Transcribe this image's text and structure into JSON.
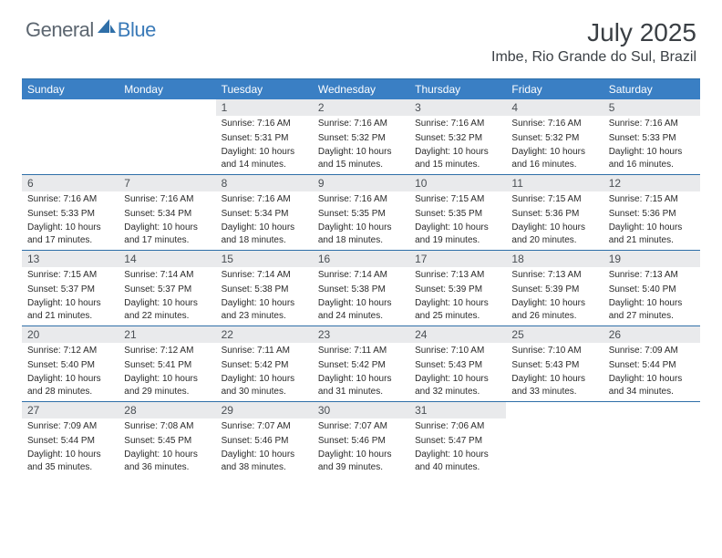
{
  "brand": {
    "general": "General",
    "blue": "Blue"
  },
  "title": "July 2025",
  "location": "Imbe, Rio Grande do Sul, Brazil",
  "colors": {
    "header_bar": "#3a7fc4",
    "header_border": "#2f6fa8",
    "daynum_bg": "#e9eaec",
    "text": "#2a2a2a",
    "title_text": "#3a3f44",
    "logo_gray": "#5c6670",
    "logo_blue": "#3a7ab8",
    "background": "#ffffff"
  },
  "weekdays": [
    "Sunday",
    "Monday",
    "Tuesday",
    "Wednesday",
    "Thursday",
    "Friday",
    "Saturday"
  ],
  "weeks": [
    [
      {
        "n": "",
        "sunrise": "",
        "sunset": "",
        "daylight": ""
      },
      {
        "n": "",
        "sunrise": "",
        "sunset": "",
        "daylight": ""
      },
      {
        "n": "1",
        "sunrise": "Sunrise: 7:16 AM",
        "sunset": "Sunset: 5:31 PM",
        "daylight": "Daylight: 10 hours and 14 minutes."
      },
      {
        "n": "2",
        "sunrise": "Sunrise: 7:16 AM",
        "sunset": "Sunset: 5:32 PM",
        "daylight": "Daylight: 10 hours and 15 minutes."
      },
      {
        "n": "3",
        "sunrise": "Sunrise: 7:16 AM",
        "sunset": "Sunset: 5:32 PM",
        "daylight": "Daylight: 10 hours and 15 minutes."
      },
      {
        "n": "4",
        "sunrise": "Sunrise: 7:16 AM",
        "sunset": "Sunset: 5:32 PM",
        "daylight": "Daylight: 10 hours and 16 minutes."
      },
      {
        "n": "5",
        "sunrise": "Sunrise: 7:16 AM",
        "sunset": "Sunset: 5:33 PM",
        "daylight": "Daylight: 10 hours and 16 minutes."
      }
    ],
    [
      {
        "n": "6",
        "sunrise": "Sunrise: 7:16 AM",
        "sunset": "Sunset: 5:33 PM",
        "daylight": "Daylight: 10 hours and 17 minutes."
      },
      {
        "n": "7",
        "sunrise": "Sunrise: 7:16 AM",
        "sunset": "Sunset: 5:34 PM",
        "daylight": "Daylight: 10 hours and 17 minutes."
      },
      {
        "n": "8",
        "sunrise": "Sunrise: 7:16 AM",
        "sunset": "Sunset: 5:34 PM",
        "daylight": "Daylight: 10 hours and 18 minutes."
      },
      {
        "n": "9",
        "sunrise": "Sunrise: 7:16 AM",
        "sunset": "Sunset: 5:35 PM",
        "daylight": "Daylight: 10 hours and 18 minutes."
      },
      {
        "n": "10",
        "sunrise": "Sunrise: 7:15 AM",
        "sunset": "Sunset: 5:35 PM",
        "daylight": "Daylight: 10 hours and 19 minutes."
      },
      {
        "n": "11",
        "sunrise": "Sunrise: 7:15 AM",
        "sunset": "Sunset: 5:36 PM",
        "daylight": "Daylight: 10 hours and 20 minutes."
      },
      {
        "n": "12",
        "sunrise": "Sunrise: 7:15 AM",
        "sunset": "Sunset: 5:36 PM",
        "daylight": "Daylight: 10 hours and 21 minutes."
      }
    ],
    [
      {
        "n": "13",
        "sunrise": "Sunrise: 7:15 AM",
        "sunset": "Sunset: 5:37 PM",
        "daylight": "Daylight: 10 hours and 21 minutes."
      },
      {
        "n": "14",
        "sunrise": "Sunrise: 7:14 AM",
        "sunset": "Sunset: 5:37 PM",
        "daylight": "Daylight: 10 hours and 22 minutes."
      },
      {
        "n": "15",
        "sunrise": "Sunrise: 7:14 AM",
        "sunset": "Sunset: 5:38 PM",
        "daylight": "Daylight: 10 hours and 23 minutes."
      },
      {
        "n": "16",
        "sunrise": "Sunrise: 7:14 AM",
        "sunset": "Sunset: 5:38 PM",
        "daylight": "Daylight: 10 hours and 24 minutes."
      },
      {
        "n": "17",
        "sunrise": "Sunrise: 7:13 AM",
        "sunset": "Sunset: 5:39 PM",
        "daylight": "Daylight: 10 hours and 25 minutes."
      },
      {
        "n": "18",
        "sunrise": "Sunrise: 7:13 AM",
        "sunset": "Sunset: 5:39 PM",
        "daylight": "Daylight: 10 hours and 26 minutes."
      },
      {
        "n": "19",
        "sunrise": "Sunrise: 7:13 AM",
        "sunset": "Sunset: 5:40 PM",
        "daylight": "Daylight: 10 hours and 27 minutes."
      }
    ],
    [
      {
        "n": "20",
        "sunrise": "Sunrise: 7:12 AM",
        "sunset": "Sunset: 5:40 PM",
        "daylight": "Daylight: 10 hours and 28 minutes."
      },
      {
        "n": "21",
        "sunrise": "Sunrise: 7:12 AM",
        "sunset": "Sunset: 5:41 PM",
        "daylight": "Daylight: 10 hours and 29 minutes."
      },
      {
        "n": "22",
        "sunrise": "Sunrise: 7:11 AM",
        "sunset": "Sunset: 5:42 PM",
        "daylight": "Daylight: 10 hours and 30 minutes."
      },
      {
        "n": "23",
        "sunrise": "Sunrise: 7:11 AM",
        "sunset": "Sunset: 5:42 PM",
        "daylight": "Daylight: 10 hours and 31 minutes."
      },
      {
        "n": "24",
        "sunrise": "Sunrise: 7:10 AM",
        "sunset": "Sunset: 5:43 PM",
        "daylight": "Daylight: 10 hours and 32 minutes."
      },
      {
        "n": "25",
        "sunrise": "Sunrise: 7:10 AM",
        "sunset": "Sunset: 5:43 PM",
        "daylight": "Daylight: 10 hours and 33 minutes."
      },
      {
        "n": "26",
        "sunrise": "Sunrise: 7:09 AM",
        "sunset": "Sunset: 5:44 PM",
        "daylight": "Daylight: 10 hours and 34 minutes."
      }
    ],
    [
      {
        "n": "27",
        "sunrise": "Sunrise: 7:09 AM",
        "sunset": "Sunset: 5:44 PM",
        "daylight": "Daylight: 10 hours and 35 minutes."
      },
      {
        "n": "28",
        "sunrise": "Sunrise: 7:08 AM",
        "sunset": "Sunset: 5:45 PM",
        "daylight": "Daylight: 10 hours and 36 minutes."
      },
      {
        "n": "29",
        "sunrise": "Sunrise: 7:07 AM",
        "sunset": "Sunset: 5:46 PM",
        "daylight": "Daylight: 10 hours and 38 minutes."
      },
      {
        "n": "30",
        "sunrise": "Sunrise: 7:07 AM",
        "sunset": "Sunset: 5:46 PM",
        "daylight": "Daylight: 10 hours and 39 minutes."
      },
      {
        "n": "31",
        "sunrise": "Sunrise: 7:06 AM",
        "sunset": "Sunset: 5:47 PM",
        "daylight": "Daylight: 10 hours and 40 minutes."
      },
      {
        "n": "",
        "sunrise": "",
        "sunset": "",
        "daylight": ""
      },
      {
        "n": "",
        "sunrise": "",
        "sunset": "",
        "daylight": ""
      }
    ]
  ]
}
